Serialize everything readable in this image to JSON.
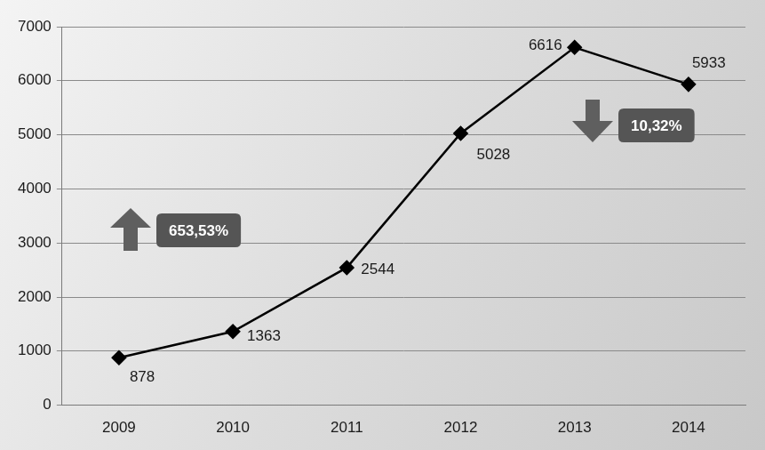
{
  "chart_data": {
    "type": "line",
    "categories": [
      "2009",
      "2010",
      "2011",
      "2012",
      "2013",
      "2014"
    ],
    "values": [
      878,
      1363,
      2544,
      5028,
      6616,
      5933
    ],
    "color": "#000000",
    "marker": "diamond",
    "ylim": [
      0,
      7000
    ],
    "yticks": [
      0,
      1000,
      2000,
      3000,
      4000,
      5000,
      6000,
      7000
    ],
    "grid": true,
    "data_labels": true,
    "annotations": [
      "653,53%",
      "10,32%"
    ]
  }
}
